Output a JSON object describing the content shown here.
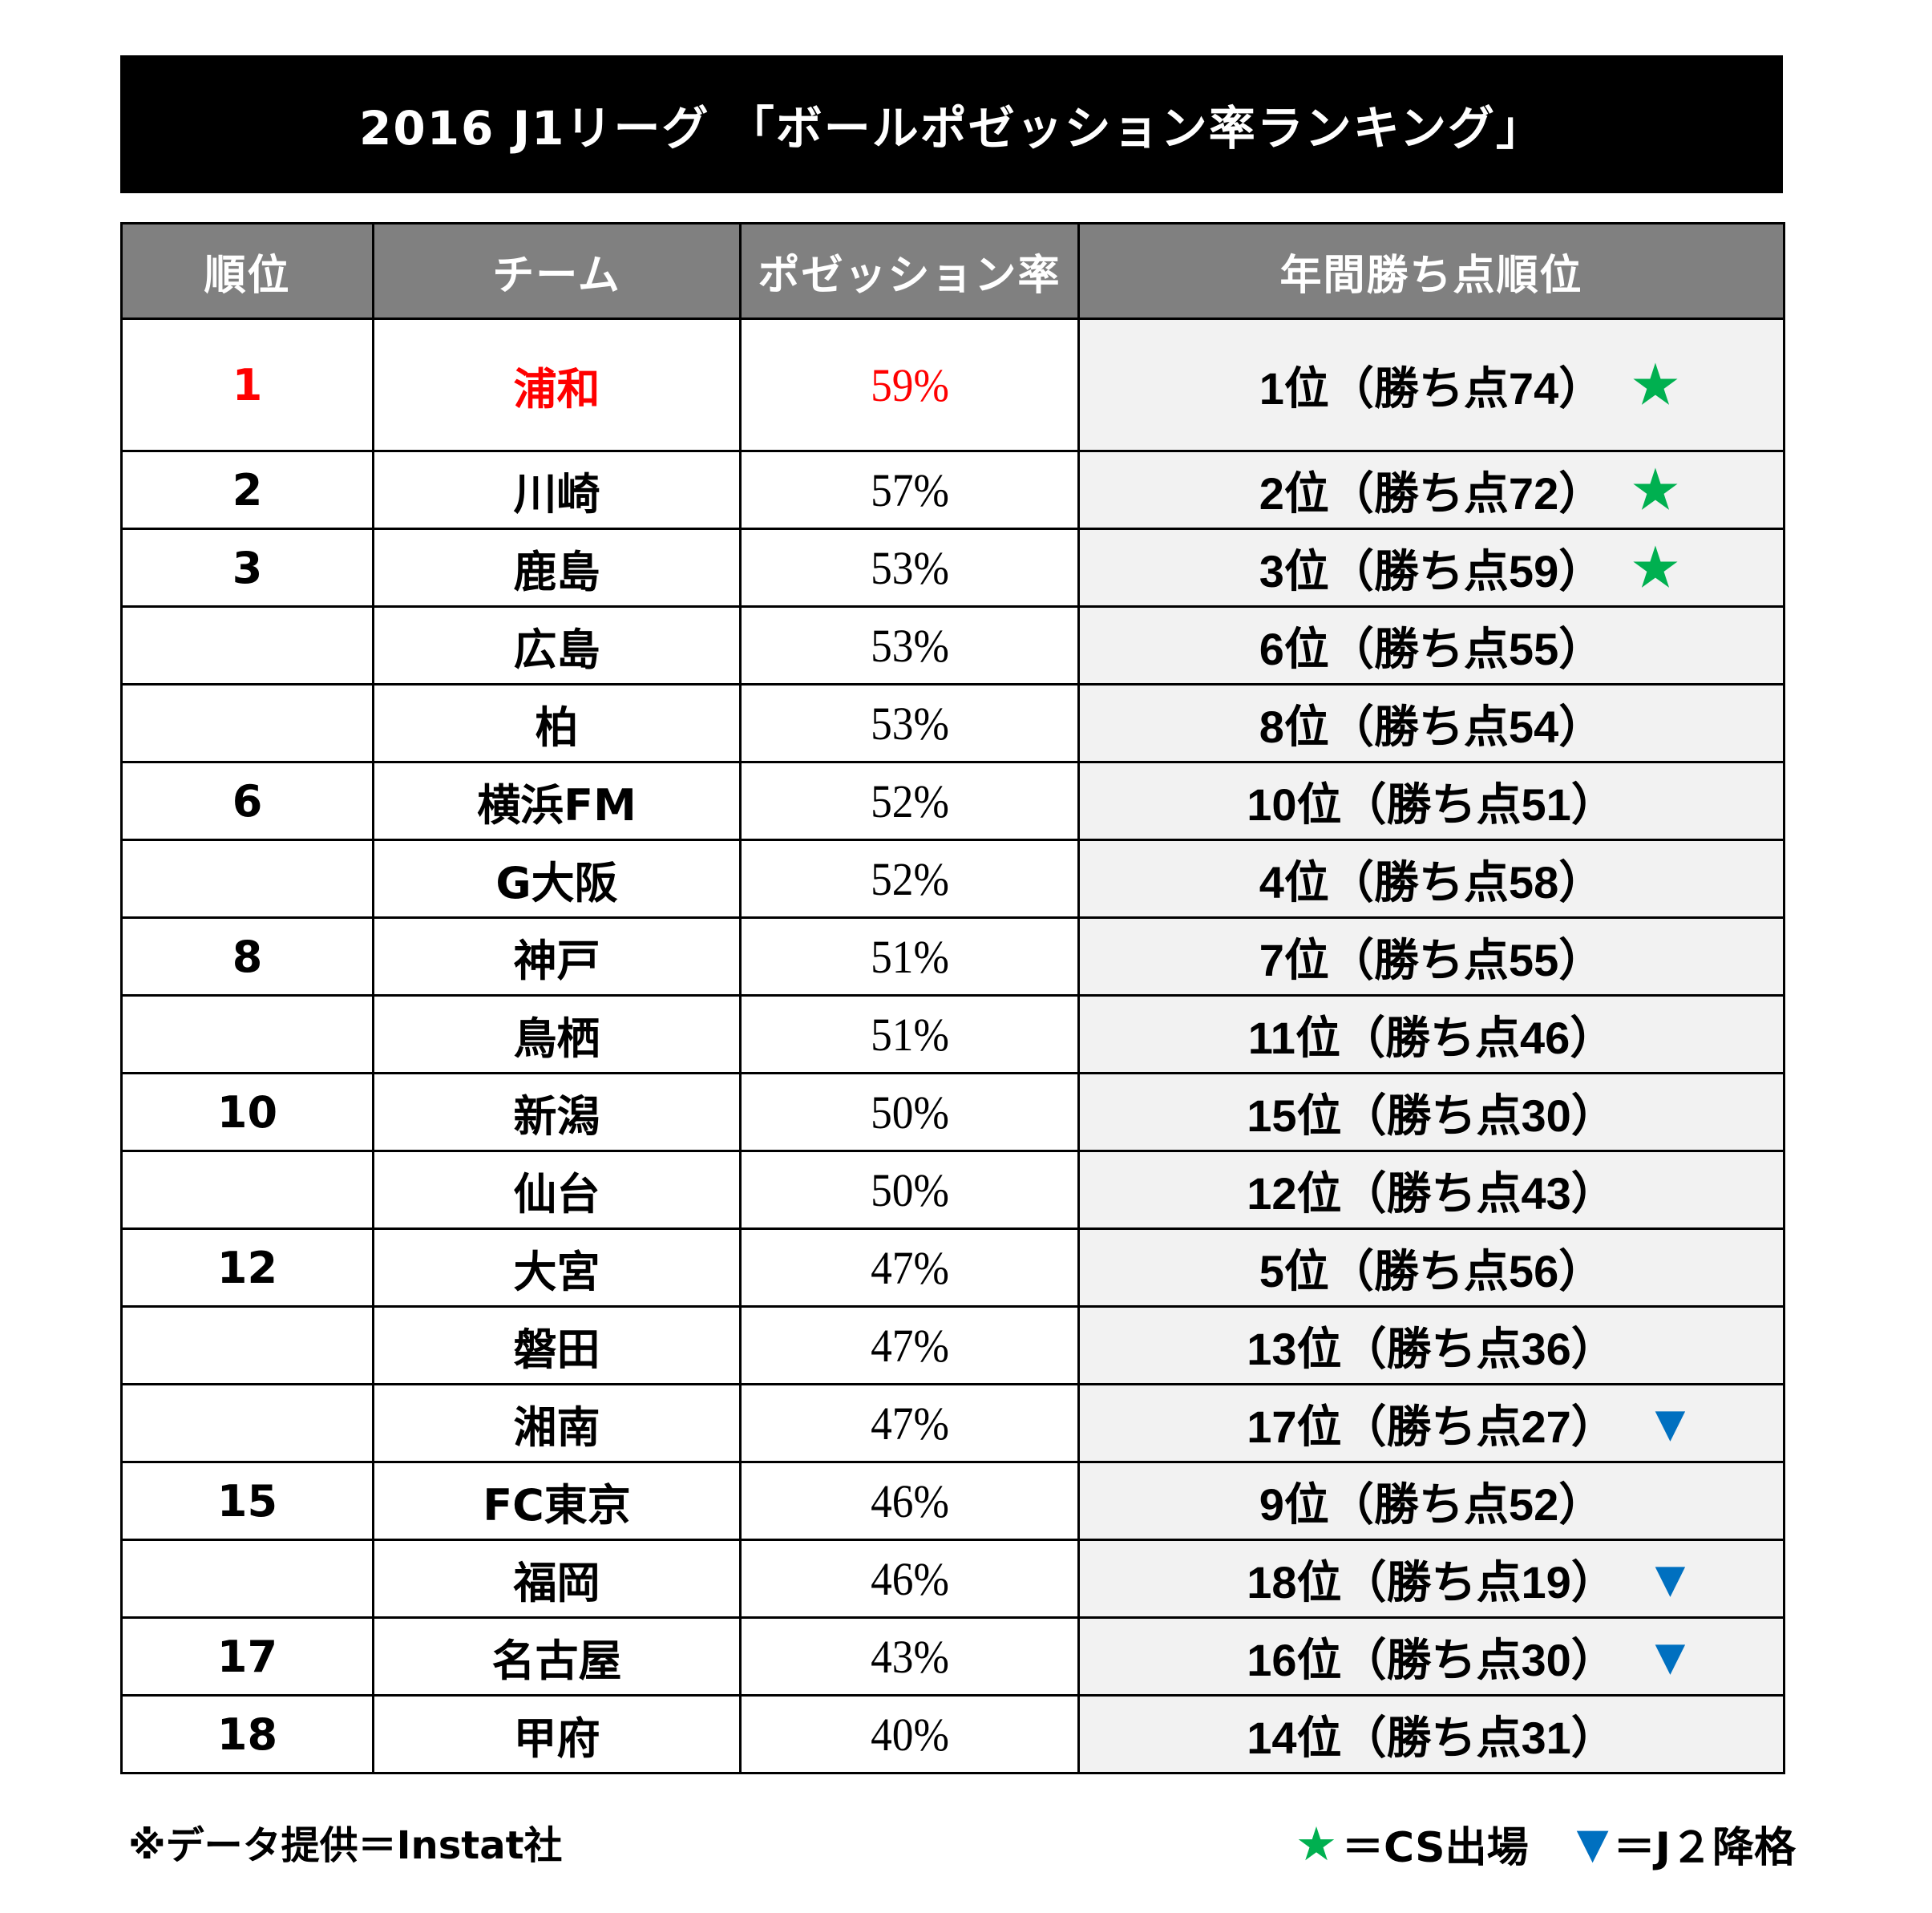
{
  "title": "2016 J1リーグ 「ボールポゼッション率ランキング」",
  "table": {
    "headers": [
      "順位",
      "チーム",
      "ポゼッション率",
      "年間勝ち点順位"
    ],
    "rows": [
      {
        "rank": "1",
        "team": "浦和",
        "possession": "59%",
        "season": "1位（勝ち点74）",
        "mark": "★",
        "mark_type": "star",
        "highlight": true
      },
      {
        "rank": "2",
        "team": "川崎",
        "possession": "57%",
        "season": "2位（勝ち点72）",
        "mark": "★",
        "mark_type": "star"
      },
      {
        "rank": "3",
        "team": "鹿島",
        "possession": "53%",
        "season": "3位（勝ち点59）",
        "mark": "★",
        "mark_type": "star"
      },
      {
        "rank": "",
        "team": "広島",
        "possession": "53%",
        "season": "6位（勝ち点55）",
        "mark": "",
        "mark_type": ""
      },
      {
        "rank": "",
        "team": "柏",
        "possession": "53%",
        "season": "8位（勝ち点54）",
        "mark": "",
        "mark_type": ""
      },
      {
        "rank": "6",
        "team": "横浜FM",
        "possession": "52%",
        "season": "10位（勝ち点51）",
        "mark": "",
        "mark_type": ""
      },
      {
        "rank": "",
        "team": "G大阪",
        "possession": "52%",
        "season": "4位（勝ち点58）",
        "mark": "",
        "mark_type": ""
      },
      {
        "rank": "8",
        "team": "神戸",
        "possession": "51%",
        "season": "7位（勝ち点55）",
        "mark": "",
        "mark_type": ""
      },
      {
        "rank": "",
        "team": "鳥栖",
        "possession": "51%",
        "season": "11位（勝ち点46）",
        "mark": "",
        "mark_type": ""
      },
      {
        "rank": "10",
        "team": "新潟",
        "possession": "50%",
        "season": "15位（勝ち点30）",
        "mark": "",
        "mark_type": ""
      },
      {
        "rank": "",
        "team": "仙台",
        "possession": "50%",
        "season": "12位（勝ち点43）",
        "mark": "",
        "mark_type": ""
      },
      {
        "rank": "12",
        "team": "大宮",
        "possession": "47%",
        "season": "5位（勝ち点56）",
        "mark": "",
        "mark_type": ""
      },
      {
        "rank": "",
        "team": "磐田",
        "possession": "47%",
        "season": "13位（勝ち点36）",
        "mark": "",
        "mark_type": ""
      },
      {
        "rank": "",
        "team": "湘南",
        "possession": "47%",
        "season": "17位（勝ち点27）",
        "mark": "▼",
        "mark_type": "down"
      },
      {
        "rank": "15",
        "team": "FC東京",
        "possession": "46%",
        "season": "9位（勝ち点52）",
        "mark": "",
        "mark_type": ""
      },
      {
        "rank": "",
        "team": "福岡",
        "possession": "46%",
        "season": "18位（勝ち点19）",
        "mark": "▼",
        "mark_type": "down"
      },
      {
        "rank": "17",
        "team": "名古屋",
        "possession": "43%",
        "season": "16位（勝ち点30）",
        "mark": "▼",
        "mark_type": "down"
      },
      {
        "rank": "18",
        "team": "甲府",
        "possession": "40%",
        "season": "14位（勝ち点31）",
        "mark": "",
        "mark_type": ""
      }
    ]
  },
  "footer": {
    "note": "※データ提供＝Instat社",
    "legend": [
      {
        "icon": "★",
        "icon_name": "star-icon",
        "label": "＝CS出場"
      },
      {
        "icon": "▼",
        "icon_name": "down-triangle-icon",
        "label": "＝J２降格"
      }
    ]
  },
  "colors": {
    "title_bg": "#000000",
    "header_bg": "#808080",
    "season_col_bg": "#f2f2f2",
    "highlight": "#ff0000",
    "star": "#00b050",
    "relegation": "#0070c0"
  }
}
